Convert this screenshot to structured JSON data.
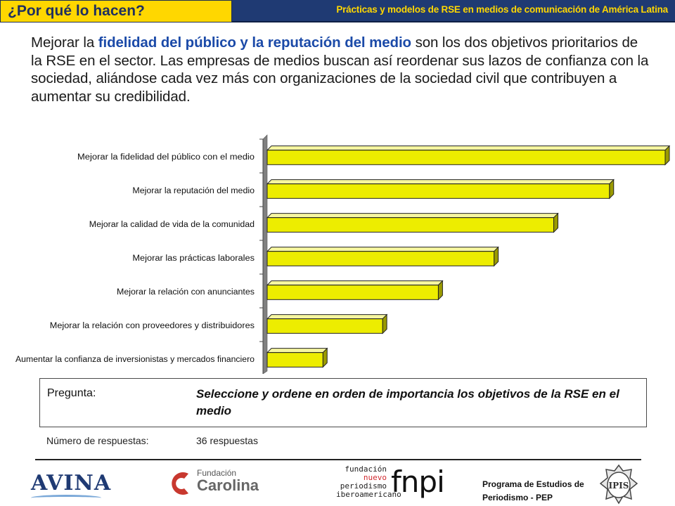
{
  "header": {
    "tab_title": "¿Por qué lo hacen?",
    "subtitle": "Prácticas y modelos de RSE en medios de comunicación de América Latina"
  },
  "intro": {
    "part1": "Mejorar la ",
    "highlight": "fidelidad del público y la reputación del medio",
    "part2": " son los dos objetivos prioritarios de la RSE en el sector. Las empresas de medios buscan así reordenar sus lazos de confianza con la sociedad, aliándose cada vez más con organizaciones de la sociedad civil que contribuyen a aumentar su credibilidad."
  },
  "chart_data": {
    "type": "bar",
    "orientation": "horizontal",
    "title": "",
    "xlabel": "",
    "ylabel": "",
    "grid": false,
    "legend": "none",
    "bar_color": "#eded00",
    "categories": [
      "Mejorar la fidelidad del público con el medio",
      "Mejorar la reputación del medio",
      "Mejorar la calidad de vida de la comunidad",
      "Mejorar las prácticas laborales",
      "Mejorar la relación con anunciantes",
      "Mejorar la relación con proveedores y distribuidores",
      "Aumentar la confianza de inversionistas y mercados financiero"
    ],
    "values": [
      100,
      86,
      72,
      57,
      43,
      29,
      14
    ],
    "xlim": [
      0,
      100
    ]
  },
  "question": {
    "label": "Pregunta:",
    "text": "Seleccione y ordene en orden de importancia los objetivos de la RSE en el medio"
  },
  "responses": {
    "label": "Número de respuestas:",
    "value": "36 respuestas"
  },
  "footer": {
    "avina": "AVINA",
    "carolina_small": "Fundación",
    "carolina_big": "Carolina",
    "fnpi_stack": [
      "fundación",
      "nuevo",
      "periodismo",
      "iberoamericano"
    ],
    "fnpi_logo": "fnpi",
    "pep_line1": "Programa de Estudios de",
    "pep_line2": "Periodismo - PEP",
    "seal_text": "IPIS"
  },
  "colors": {
    "accent_yellow": "#ffd700",
    "header_blue": "#1f3a73",
    "highlight_blue": "#1b4aa8",
    "bar_yellow": "#eded00",
    "axis_gray": "#808080"
  }
}
